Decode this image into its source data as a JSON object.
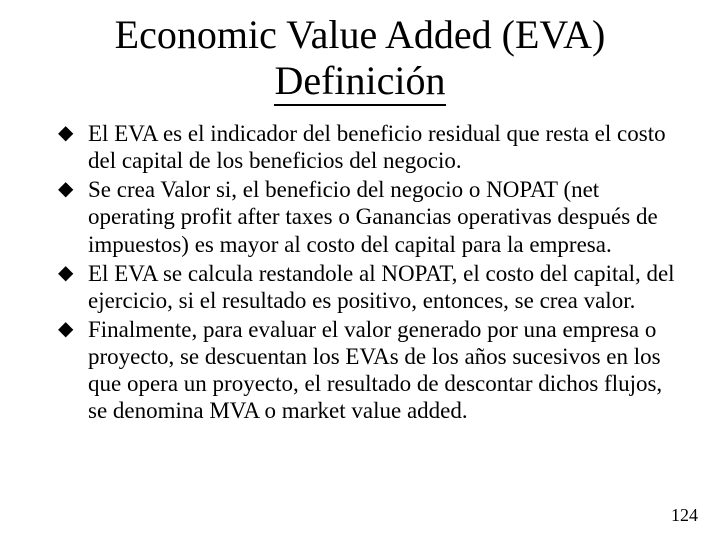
{
  "title_line1": "Economic Value Added (EVA)",
  "title_line2": "Definición",
  "bullet_marker": "◆",
  "bullets": [
    "El EVA es el indicador  del beneficio residual que resta el costo del capital de los beneficios del negocio.",
    "Se crea Valor si, el beneficio del negocio o NOPAT (net operating profit after taxes o Ganancias operativas después de impuestos) es mayor al costo del capital para la empresa.",
    "El EVA se calcula restandole al NOPAT, el costo del capital, del ejercicio, si el resultado es positivo, entonces, se crea valor.",
    "Finalmente, para evaluar el valor generado por una empresa o proyecto, se descuentan los EVAs de los años sucesivos en los que opera un proyecto, el resultado de descontar dichos flujos, se denomina MVA o market value added."
  ],
  "page_number": "124",
  "colors": {
    "background": "#ffffff",
    "text": "#000000",
    "underline": "#000000"
  },
  "typography": {
    "title_fontsize": 40,
    "body_fontsize": 23,
    "pagenum_fontsize": 18,
    "font_family": "Times New Roman"
  }
}
